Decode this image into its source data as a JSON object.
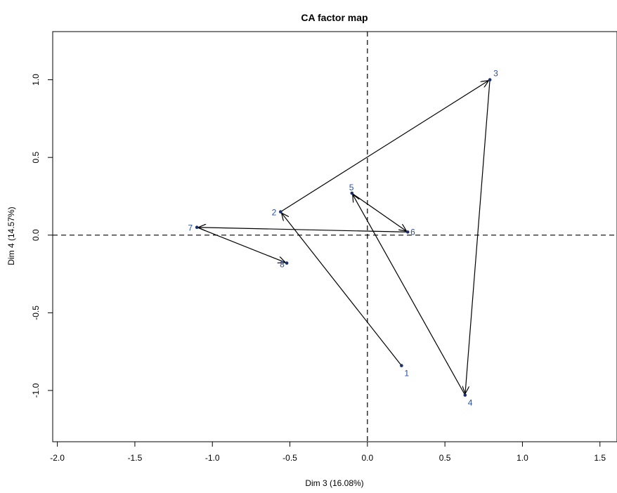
{
  "chart_data": {
    "type": "scatter",
    "title": "CA factor map",
    "xlabel": "Dim 3 (16.08%)",
    "ylabel": "Dim 4 (14.57%)",
    "xlim": [
      -2.03,
      1.61
    ],
    "ylim": [
      -1.33,
      1.31
    ],
    "xticks": [
      -2.0,
      -1.5,
      -1.0,
      -0.5,
      0.0,
      0.5,
      1.0,
      1.5
    ],
    "xtick_labels": [
      "-2.0",
      "-1.5",
      "-1.0",
      "-0.5",
      "0.0",
      "0.5",
      "1.0",
      "1.5"
    ],
    "yticks": [
      -1.0,
      -0.5,
      0.0,
      0.5,
      1.0
    ],
    "ytick_labels": [
      "-1.0",
      "-0.5",
      "0.0",
      "0.5",
      "1.0"
    ],
    "reference_lines": {
      "x": 0,
      "y": 0,
      "style": "dashed"
    },
    "point_color": "#2b4fa0",
    "arrow_color": "#000000",
    "points": [
      {
        "label": "1",
        "x": 0.22,
        "y": -0.84
      },
      {
        "label": "2",
        "x": -0.56,
        "y": 0.15
      },
      {
        "label": "3",
        "x": 0.79,
        "y": 1.0
      },
      {
        "label": "4",
        "x": 0.63,
        "y": -1.03
      },
      {
        "label": "5",
        "x": -0.1,
        "y": 0.27
      },
      {
        "label": "6",
        "x": 0.26,
        "y": 0.02
      },
      {
        "label": "7",
        "x": -1.1,
        "y": 0.05
      },
      {
        "label": "8",
        "x": -0.52,
        "y": -0.18
      }
    ],
    "arrows": [
      {
        "from": "1",
        "to": "2"
      },
      {
        "from": "2",
        "to": "3"
      },
      {
        "from": "3",
        "to": "4"
      },
      {
        "from": "4",
        "to": "5"
      },
      {
        "from": "5",
        "to": "6"
      },
      {
        "from": "6",
        "to": "7"
      },
      {
        "from": "7",
        "to": "8"
      }
    ]
  }
}
